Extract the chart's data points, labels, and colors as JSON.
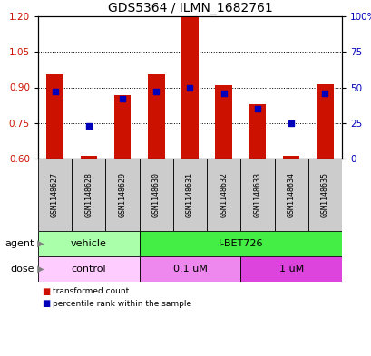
{
  "title": "GDS5364 / ILMN_1682761",
  "samples": [
    "GSM1148627",
    "GSM1148628",
    "GSM1148629",
    "GSM1148630",
    "GSM1148631",
    "GSM1148632",
    "GSM1148633",
    "GSM1148634",
    "GSM1148635"
  ],
  "transformed_count": [
    0.955,
    0.612,
    0.868,
    0.955,
    1.195,
    0.91,
    0.83,
    0.612,
    0.915
  ],
  "percentile_rank": [
    47,
    23,
    42,
    47,
    50,
    46,
    35,
    25,
    46
  ],
  "ylim_left": [
    0.6,
    1.2
  ],
  "ylim_right": [
    0,
    100
  ],
  "yticks_left": [
    0.6,
    0.75,
    0.9,
    1.05,
    1.2
  ],
  "yticks_right": [
    0,
    25,
    50,
    75,
    100
  ],
  "ytick_labels_right": [
    "0",
    "25",
    "50",
    "75",
    "100%"
  ],
  "bar_color": "#cc1100",
  "dot_color": "#0000bb",
  "bar_bottom": 0.6,
  "agent_groups": [
    {
      "label": "vehicle",
      "start": 0,
      "end": 3,
      "color": "#aaffaa"
    },
    {
      "label": "I-BET726",
      "start": 3,
      "end": 9,
      "color": "#44ee44"
    }
  ],
  "dose_groups": [
    {
      "label": "control",
      "start": 0,
      "end": 3,
      "color": "#ffccff"
    },
    {
      "label": "0.1 uM",
      "start": 3,
      "end": 6,
      "color": "#ee88ee"
    },
    {
      "label": "1 uM",
      "start": 6,
      "end": 9,
      "color": "#dd44dd"
    }
  ],
  "legend_red_label": "transformed count",
  "legend_blue_label": "percentile rank within the sample",
  "background_color": "#ffffff",
  "sample_bg_color": "#cccccc",
  "title_fontsize": 10,
  "tick_fontsize": 7.5,
  "label_fontsize": 8,
  "sample_fontsize": 6,
  "row_label_fontsize": 8,
  "group_fontsize": 8
}
